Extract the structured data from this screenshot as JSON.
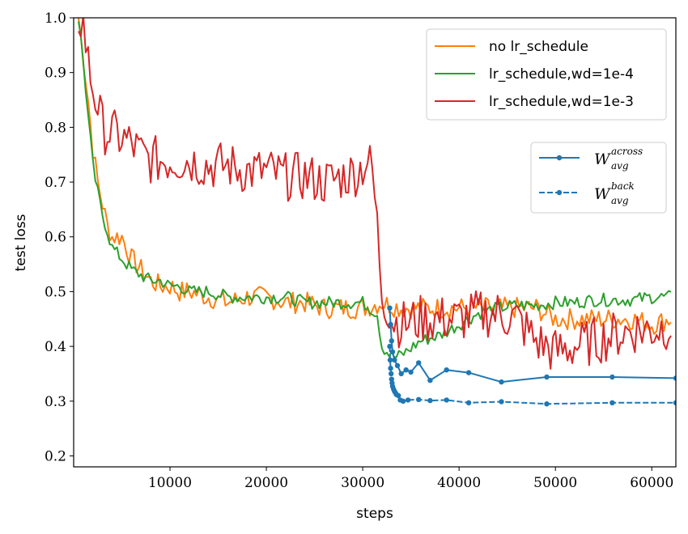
{
  "chart_data": {
    "type": "line",
    "xlabel": "steps",
    "ylabel": "test loss",
    "xlim": [
      0,
      62500
    ],
    "ylim": [
      0.18,
      1.0
    ],
    "xticks": [
      10000,
      20000,
      30000,
      40000,
      50000,
      60000
    ],
    "xtick_labels": [
      "10000",
      "20000",
      "30000",
      "40000",
      "50000",
      "60000"
    ],
    "yticks": [
      0.2,
      0.3,
      0.4,
      0.5,
      0.6,
      0.7,
      0.8,
      0.9,
      1.0
    ],
    "ytick_labels": [
      "0.2",
      "0.3",
      "0.4",
      "0.5",
      "0.6",
      "0.7",
      "0.8",
      "0.9",
      "1.0"
    ],
    "grid": false,
    "legend_placement": [
      "top-right",
      "right"
    ],
    "series": [
      {
        "name": "no lr_schedule",
        "color": "#ff7f0e",
        "style": "solid",
        "marker": "none",
        "x": [
          500,
          1000,
          1500,
          2000,
          2500,
          3000,
          3500,
          4000,
          5000,
          6000,
          7000,
          8000,
          9000,
          10000,
          11000,
          12000,
          14000,
          16000,
          18000,
          20000,
          22000,
          24000,
          26000,
          28000,
          30000,
          32000,
          34000,
          36000,
          38000,
          40000,
          42000,
          44000,
          46000,
          48000,
          50000,
          52000,
          54000,
          56000,
          58000,
          60000,
          62000
        ],
        "y": [
          1.0,
          0.93,
          0.85,
          0.76,
          0.7,
          0.66,
          0.62,
          0.6,
          0.6,
          0.56,
          0.54,
          0.52,
          0.51,
          0.51,
          0.5,
          0.5,
          0.49,
          0.48,
          0.49,
          0.49,
          0.48,
          0.48,
          0.47,
          0.47,
          0.47,
          0.48,
          0.47,
          0.47,
          0.47,
          0.47,
          0.47,
          0.47,
          0.47,
          0.47,
          0.45,
          0.45,
          0.45,
          0.45,
          0.45,
          0.44,
          0.45
        ],
        "noise": 0.02
      },
      {
        "name": "lr_schedule,wd=1e-4",
        "color": "#2ca02c",
        "style": "solid",
        "marker": "none",
        "x": [
          500,
          1000,
          1500,
          2000,
          2500,
          3000,
          3500,
          4000,
          5000,
          6000,
          7000,
          8000,
          9000,
          10000,
          11000,
          12000,
          14000,
          16000,
          18000,
          20000,
          22000,
          24000,
          26000,
          28000,
          30000,
          31500,
          32000,
          32800,
          33500,
          34500,
          36000,
          38000,
          40000,
          42000,
          44000,
          46000,
          48000,
          50000,
          52000,
          54000,
          56000,
          58000,
          60000,
          62000
        ],
        "y": [
          1.0,
          0.92,
          0.82,
          0.73,
          0.68,
          0.64,
          0.61,
          0.58,
          0.56,
          0.54,
          0.53,
          0.52,
          0.52,
          0.51,
          0.51,
          0.5,
          0.5,
          0.49,
          0.49,
          0.49,
          0.49,
          0.48,
          0.48,
          0.48,
          0.48,
          0.46,
          0.4,
          0.385,
          0.38,
          0.39,
          0.41,
          0.42,
          0.44,
          0.46,
          0.47,
          0.475,
          0.475,
          0.48,
          0.48,
          0.485,
          0.485,
          0.485,
          0.49,
          0.49
        ],
        "noise": 0.012
      },
      {
        "name": "lr_schedule,wd=1e-3",
        "color": "#d62728",
        "style": "solid",
        "marker": "none",
        "x": [
          500,
          1000,
          1500,
          2000,
          2500,
          3000,
          3500,
          4000,
          5000,
          6000,
          7000,
          8000,
          10000,
          12000,
          14000,
          16000,
          18000,
          20000,
          22000,
          24000,
          26000,
          28000,
          29500,
          30500,
          31000,
          31500,
          32000,
          33000,
          34000,
          36000,
          38000,
          40000,
          42000,
          44000,
          46000,
          47000,
          48000,
          50000,
          52000,
          54000,
          56000,
          58000,
          60000,
          62000
        ],
        "y": [
          1.0,
          0.99,
          0.92,
          0.87,
          0.84,
          0.8,
          0.79,
          0.79,
          0.78,
          0.77,
          0.75,
          0.74,
          0.74,
          0.74,
          0.73,
          0.73,
          0.72,
          0.72,
          0.71,
          0.71,
          0.7,
          0.71,
          0.72,
          0.74,
          0.72,
          0.62,
          0.5,
          0.45,
          0.44,
          0.45,
          0.45,
          0.45,
          0.46,
          0.46,
          0.45,
          0.43,
          0.41,
          0.39,
          0.4,
          0.41,
          0.42,
          0.43,
          0.43,
          0.44
        ],
        "noise": 0.045
      },
      {
        "name": "W_avg^across",
        "color": "#1f77b4",
        "style": "solid",
        "marker": "o",
        "x": [
          32800,
          32900,
          33000,
          33100,
          33300,
          33600,
          34000,
          34500,
          35000,
          35800,
          37000,
          38700,
          41000,
          44400,
          49100,
          55900,
          62500
        ],
        "y": [
          0.47,
          0.44,
          0.41,
          0.39,
          0.375,
          0.365,
          0.35,
          0.357,
          0.353,
          0.37,
          0.338,
          0.357,
          0.352,
          0.335,
          0.344,
          0.344,
          0.342
        ]
      },
      {
        "name": "W_avg^back",
        "color": "#1f77b4",
        "style": "dashed",
        "marker": "o",
        "x": [
          32800,
          32850,
          32900,
          32950,
          33000,
          33050,
          33100,
          33200,
          33300,
          33400,
          33500,
          33700,
          33900,
          34200,
          34700,
          35800,
          37000,
          38700,
          41000,
          44400,
          49100,
          55900,
          62500
        ],
        "y": [
          0.4,
          0.375,
          0.36,
          0.35,
          0.34,
          0.333,
          0.327,
          0.322,
          0.318,
          0.315,
          0.312,
          0.31,
          0.302,
          0.3,
          0.302,
          0.303,
          0.301,
          0.302,
          0.297,
          0.299,
          0.295,
          0.297,
          0.297
        ]
      }
    ],
    "legends": [
      {
        "items": [
          {
            "label": "no lr_schedule",
            "color": "#ff7f0e"
          },
          {
            "label": "lr_schedule,wd=1e-4",
            "color": "#2ca02c"
          },
          {
            "label": "lr_schedule,wd=1e-3",
            "color": "#d62728"
          }
        ]
      },
      {
        "items": [
          {
            "base": "W",
            "sup": "across",
            "sub": "avg",
            "color": "#1f77b4",
            "style": "solid"
          },
          {
            "base": "W",
            "sup": "back",
            "sub": "avg",
            "color": "#1f77b4",
            "style": "dashed"
          }
        ]
      }
    ]
  }
}
